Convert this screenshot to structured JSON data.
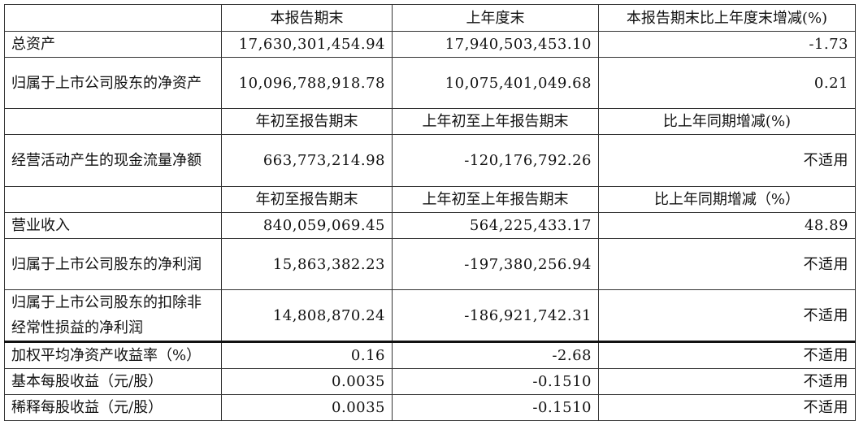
{
  "header1": [
    "",
    "本报告期末",
    "上年度末",
    "本报告期末比上年度末增减(%)"
  ],
  "block1": [
    {
      "label": "总资产",
      "v": [
        "17,630,301,454.94",
        "17,940,503,453.10",
        "-1.73"
      ]
    },
    {
      "label": "归属于上市公司股东的净资产",
      "v": [
        "10,096,788,918.78",
        "10,075,401,049.68",
        "0.21"
      ]
    }
  ],
  "header2": [
    "",
    "年初至报告期末",
    "上年初至上年报告期末",
    "比上年同期增减(%)"
  ],
  "block2": [
    {
      "label": "经营活动产生的现金流量净额",
      "v": [
        "663,773,214.98",
        "-120,176,792.26",
        "不适用"
      ]
    }
  ],
  "header3": [
    "",
    "年初至报告期末",
    "上年初至上年报告期末",
    "比上年同期增减（%）"
  ],
  "block3": [
    {
      "label": "营业收入",
      "v": [
        "840,059,069.45",
        "564,225,433.17",
        "48.89"
      ]
    },
    {
      "label": "归属于上市公司股东的净利润",
      "v": [
        "15,863,382.23",
        "-197,380,256.94",
        "不适用"
      ]
    },
    {
      "label": "归属于上市公司股东的扣除非经常性损益的净利润",
      "v": [
        "14,808,870.24",
        "-186,921,742.31",
        "不适用"
      ]
    },
    {
      "label": "加权平均净资产收益率（%）",
      "v": [
        "0.16",
        "-2.68",
        "不适用"
      ]
    },
    {
      "label": "基本每股收益（元/股）",
      "v": [
        "0.0035",
        "-0.1510",
        "不适用"
      ]
    },
    {
      "label": "稀释每股收益（元/股）",
      "v": [
        "0.0035",
        "-0.1510",
        "不适用"
      ]
    }
  ]
}
